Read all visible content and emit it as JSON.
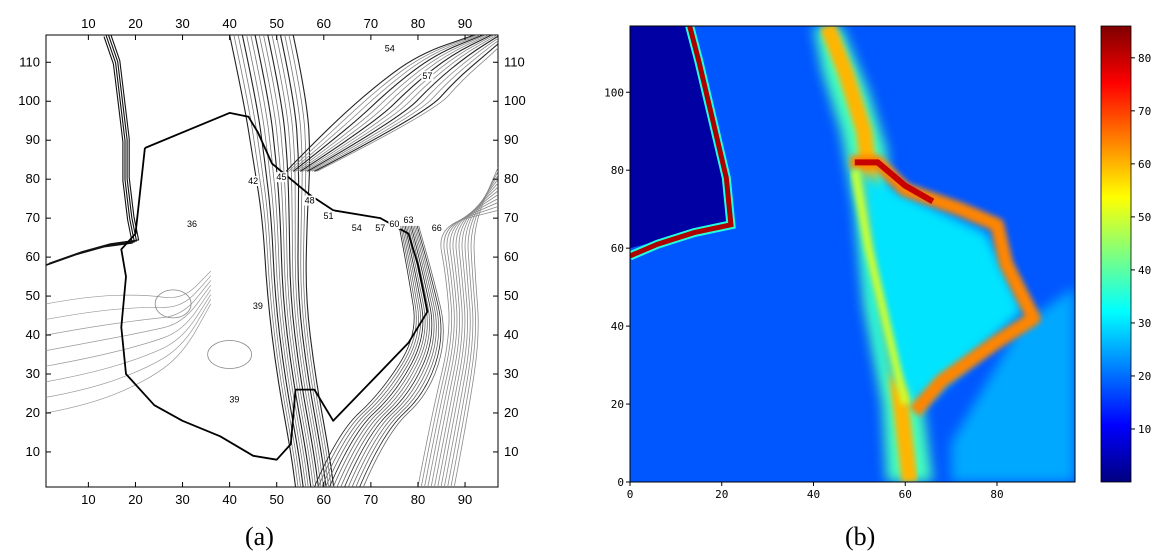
{
  "chart_data": [
    {
      "type": "contour",
      "caption": "(a)",
      "xlim": [
        1,
        97
      ],
      "ylim": [
        1,
        117
      ],
      "x_ticks": [
        10,
        20,
        30,
        40,
        50,
        60,
        70,
        80,
        90
      ],
      "y_ticks": [
        10,
        20,
        30,
        40,
        50,
        60,
        70,
        80,
        90,
        100,
        110
      ],
      "ticks_on_all_sides": true,
      "line_color": "#000000",
      "contour_labels": [
        {
          "text": "54",
          "x": 74,
          "y": 113
        },
        {
          "text": "57",
          "x": 82,
          "y": 106
        },
        {
          "text": "36",
          "x": 32,
          "y": 68
        },
        {
          "text": "42",
          "x": 45,
          "y": 79
        },
        {
          "text": "45",
          "x": 51,
          "y": 80
        },
        {
          "text": "48",
          "x": 57,
          "y": 74
        },
        {
          "text": "51",
          "x": 61,
          "y": 70
        },
        {
          "text": "54",
          "x": 67,
          "y": 67
        },
        {
          "text": "57",
          "x": 72,
          "y": 67
        },
        {
          "text": "60",
          "x": 75,
          "y": 68
        },
        {
          "text": "63",
          "x": 78,
          "y": 69
        },
        {
          "text": "66",
          "x": 84,
          "y": 67
        },
        {
          "text": "39",
          "x": 46,
          "y": 47
        },
        {
          "text": "39",
          "x": 41,
          "y": 23
        }
      ]
    },
    {
      "type": "heatmap",
      "caption": "(b)",
      "xlim": [
        0,
        97
      ],
      "ylim": [
        0,
        117
      ],
      "x_ticks": [
        0,
        20,
        40,
        60,
        80
      ],
      "y_ticks": [
        0,
        20,
        40,
        60,
        80,
        100
      ],
      "colorbar": {
        "min": 0,
        "max": 86,
        "ticks": [
          10,
          20,
          30,
          40,
          50,
          60,
          70,
          80
        ],
        "colormap": "jet",
        "position": "right"
      }
    }
  ]
}
